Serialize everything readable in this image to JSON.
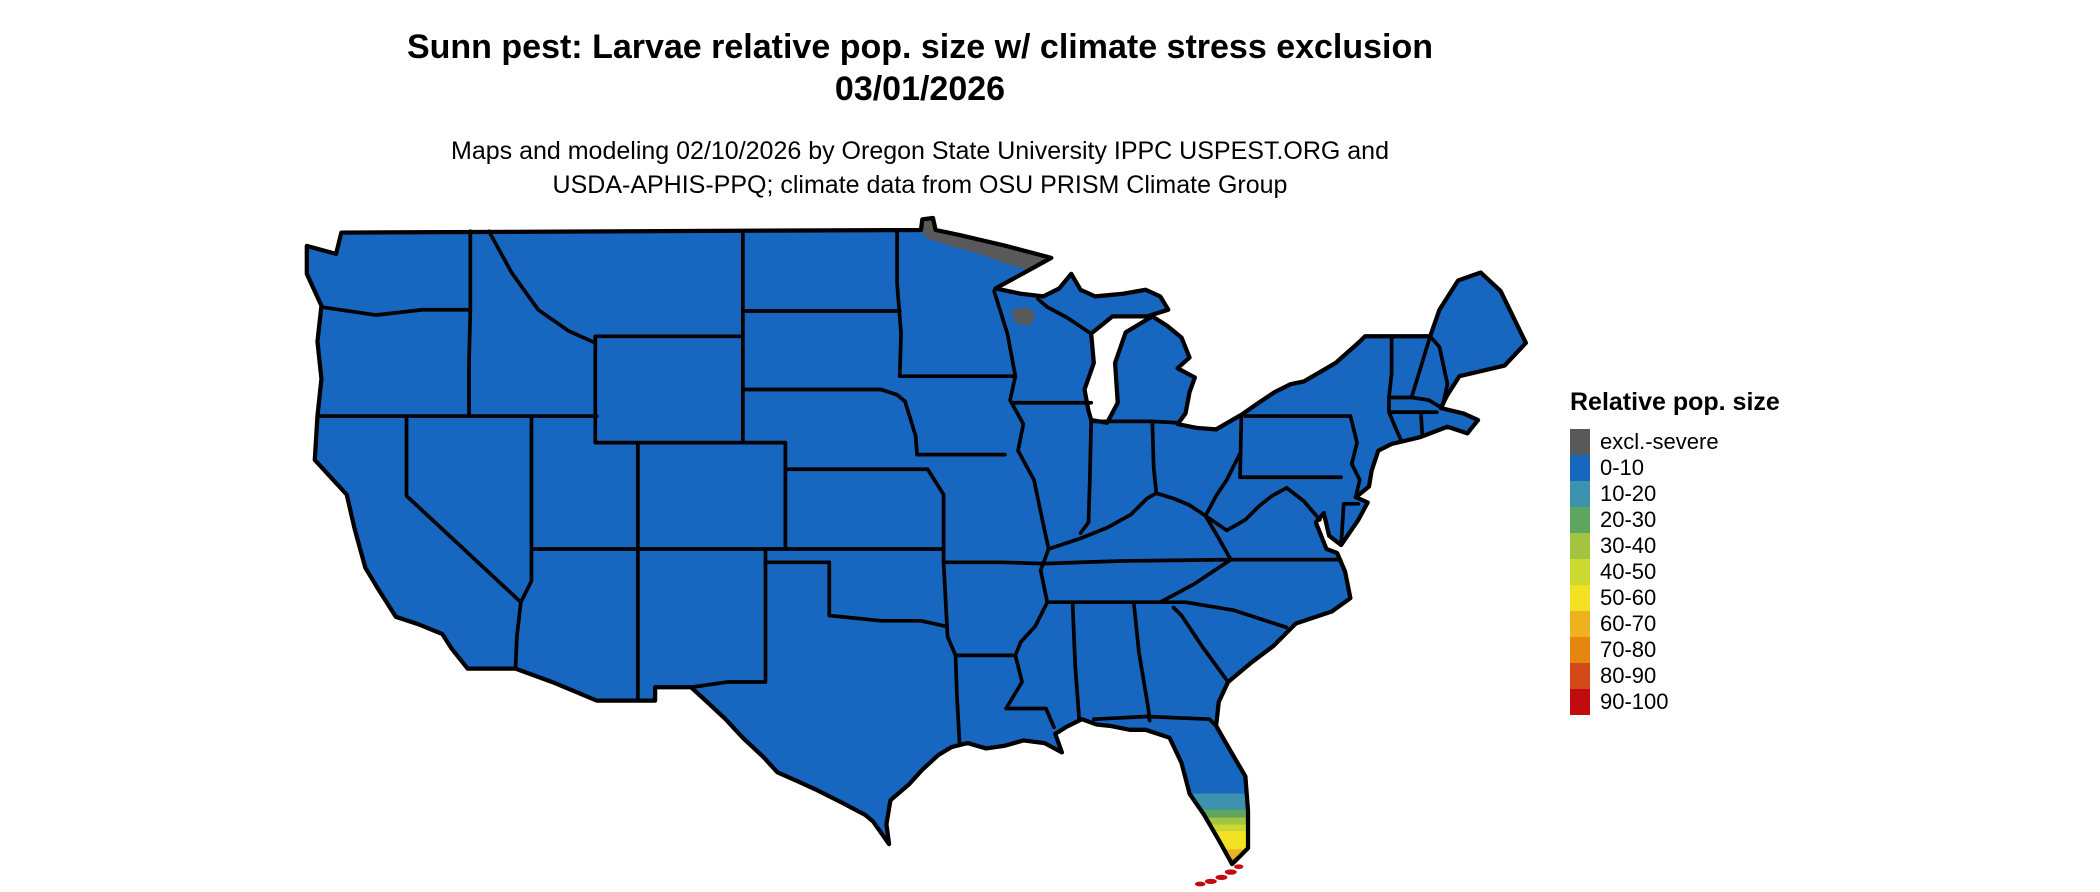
{
  "header": {
    "title_line1": "Sunn pest: Larvae relative pop. size w/ climate stress exclusion",
    "title_line2": "03/01/2026",
    "subtitle_line1": "Maps and modeling 02/10/2026 by Oregon State University IPPC USPEST.ORG and",
    "subtitle_line2": "USDA-APHIS-PPQ; climate data from OSU PRISM Climate Group"
  },
  "legend": {
    "title": "Relative pop. size",
    "items": [
      {
        "label": "excl.-severe",
        "color": "#595959"
      },
      {
        "label": "0-10",
        "color": "#1767c0"
      },
      {
        "label": "10-20",
        "color": "#3d93ad"
      },
      {
        "label": "20-30",
        "color": "#5fa55f"
      },
      {
        "label": "30-40",
        "color": "#a3c440"
      },
      {
        "label": "40-50",
        "color": "#ccd931"
      },
      {
        "label": "50-60",
        "color": "#f2e223"
      },
      {
        "label": "60-70",
        "color": "#edb21d"
      },
      {
        "label": "70-80",
        "color": "#e5860f"
      },
      {
        "label": "80-90",
        "color": "#d4491a"
      },
      {
        "label": "90-100",
        "color": "#c20a11"
      }
    ]
  },
  "map": {
    "name": "contiguous-united-states",
    "border_color": "#000000",
    "base_category": "0-10",
    "regions": [
      {
        "area": "northern Minnesota along Canadian border",
        "category": "excl.-severe"
      },
      {
        "area": "small patch in northern Wisconsin",
        "category": "excl.-severe"
      },
      {
        "area": "southern tip of Florida",
        "category": "gradient from 10-20 through 90-100"
      },
      {
        "area": "Florida Keys",
        "category": "90-100"
      }
    ]
  }
}
